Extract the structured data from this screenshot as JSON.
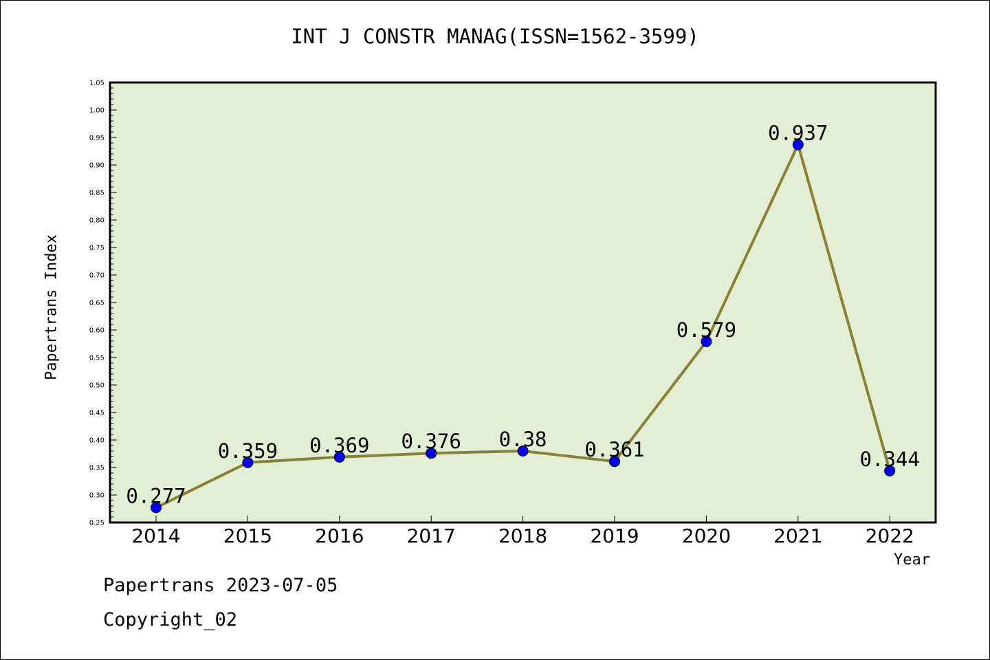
{
  "chart_data": {
    "type": "line",
    "title": "INT J CONSTR MANAG(ISSN=1562-3599)",
    "xlabel": "Year",
    "ylabel": "Papertrans Index",
    "categories": [
      "2014",
      "2015",
      "2016",
      "2017",
      "2018",
      "2019",
      "2020",
      "2021",
      "2022"
    ],
    "values": [
      0.277,
      0.359,
      0.369,
      0.376,
      0.38,
      0.361,
      0.579,
      0.937,
      0.344
    ],
    "data_labels": [
      "0.277",
      "0.359",
      "0.369",
      "0.376",
      "0.38",
      "0.361",
      "0.579",
      "0.937",
      "0.344"
    ],
    "ylim": [
      0.25,
      1.05
    ],
    "yticks": [
      "0.25",
      "0.30",
      "0.35",
      "0.40",
      "0.45",
      "0.50",
      "0.55",
      "0.60",
      "0.65",
      "0.70",
      "0.75",
      "0.80",
      "0.85",
      "0.90",
      "0.95",
      "1.00",
      "1.05"
    ],
    "grid": false,
    "colors": {
      "plot_background": "#e2efd5",
      "line": "#8b8036",
      "marker": "#0000ee"
    }
  },
  "footer": {
    "line1": "Papertrans 2023-07-05",
    "line2": "Copyright_02"
  }
}
